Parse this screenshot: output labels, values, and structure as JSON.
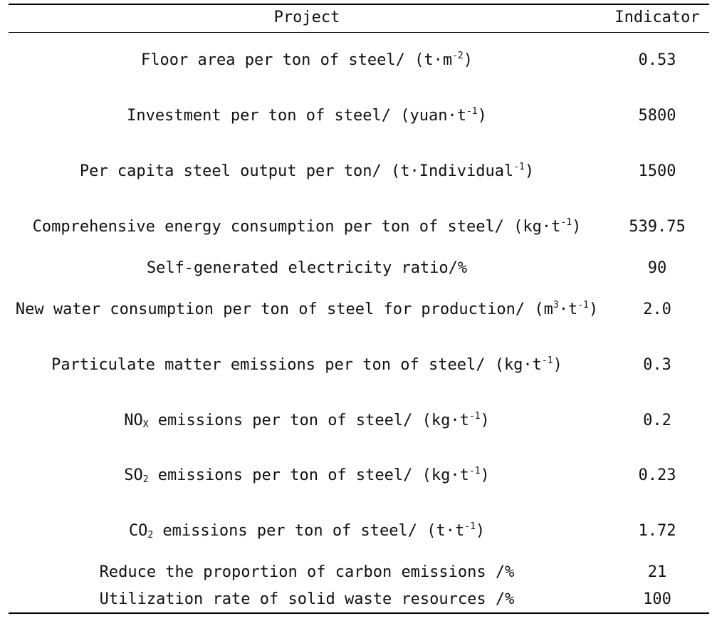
{
  "table": {
    "headers": {
      "project": "Project",
      "indicator": "Indicator"
    },
    "rows": [
      {
        "project_parts": [
          {
            "text": "Floor area per ton of steel/ (t·m"
          },
          {
            "sup": "-2"
          },
          {
            "text": ")"
          }
        ],
        "indicator": "0.53"
      },
      {
        "project_parts": [
          {
            "text": "Investment per ton of steel/ (yuan·t"
          },
          {
            "sup": "-1"
          },
          {
            "text": ")"
          }
        ],
        "indicator": "5800"
      },
      {
        "project_parts": [
          {
            "text": "Per capita steel output per ton/ (t·Individual"
          },
          {
            "sup": "-1"
          },
          {
            "text": ")"
          }
        ],
        "indicator": "1500"
      },
      {
        "project_parts": [
          {
            "text": "Comprehensive energy consumption per ton of steel/ (kg·t"
          },
          {
            "sup": "-1"
          },
          {
            "text": ")"
          }
        ],
        "indicator": "539.75"
      },
      {
        "project_parts": [
          {
            "text": "Self-generated electricity ratio/%"
          }
        ],
        "indicator": "90"
      },
      {
        "project_parts": [
          {
            "text": "New water consumption per ton of steel for production/ (m"
          },
          {
            "sup": "3"
          },
          {
            "text": "·t"
          },
          {
            "sup": "-1"
          },
          {
            "text": ")"
          }
        ],
        "indicator": "2.0"
      },
      {
        "project_parts": [
          {
            "text": "Particulate matter emissions per ton of steel/ (kg·t"
          },
          {
            "sup": "-1"
          },
          {
            "text": ")"
          }
        ],
        "indicator": "0.3"
      },
      {
        "project_parts": [
          {
            "text": "NO"
          },
          {
            "sub": "X"
          },
          {
            "text": " emissions per ton of steel/ (kg·t"
          },
          {
            "sup": "-1"
          },
          {
            "text": ")"
          }
        ],
        "indicator": "0.2"
      },
      {
        "project_parts": [
          {
            "text": "SO"
          },
          {
            "sub": "2"
          },
          {
            "text": " emissions per ton of steel/ (kg·t"
          },
          {
            "sup": "-1"
          },
          {
            "text": ")"
          }
        ],
        "indicator": "0.23"
      },
      {
        "project_parts": [
          {
            "text": "CO"
          },
          {
            "sub": "2"
          },
          {
            "text": " emissions per ton of steel/ (t·t"
          },
          {
            "sup": "-1"
          },
          {
            "text": ")"
          }
        ],
        "indicator": "1.72"
      },
      {
        "project_parts": [
          {
            "text": "Reduce the proportion of carbon emissions /%"
          }
        ],
        "indicator": "21"
      },
      {
        "project_parts": [
          {
            "text": "Utilization rate of solid waste resources /%"
          }
        ],
        "indicator": "100"
      }
    ]
  }
}
